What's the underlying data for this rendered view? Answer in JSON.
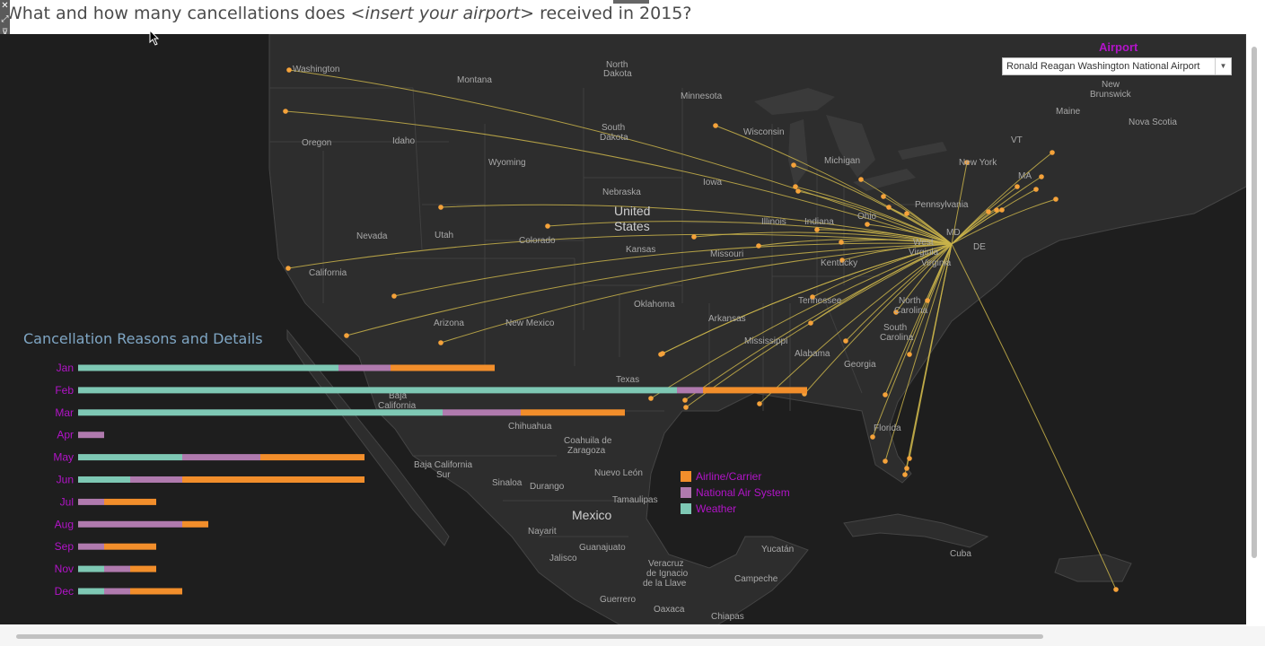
{
  "title": {
    "part1": "What and how many cancellations does ",
    "italic": "<insert your airport>",
    "part2": " received in 2015?"
  },
  "airport_filter": {
    "label": "Airport",
    "selected": "Ronald Reagan Washington National Airport"
  },
  "map_labels": {
    "states": [
      "Washington",
      "Montana",
      "North Dakota",
      "Minnesota",
      "Oregon",
      "Idaho",
      "South Dakota",
      "Wisconsin",
      "Michigan",
      "Wyoming",
      "Nebraska",
      "Iowa",
      "Illinois",
      "Indiana",
      "Ohio",
      "Pennsylvania",
      "New York",
      "Nevada",
      "Utah",
      "Colorado",
      "Kansas",
      "Missouri",
      "Kentucky",
      "West Virginia",
      "Virginia",
      "California",
      "Arizona",
      "New Mexico",
      "Oklahoma",
      "Arkansas",
      "Tennessee",
      "North Carolina",
      "South Carolina",
      "Mississippi",
      "Alabama",
      "Georgia",
      "Texas",
      "Florida",
      "Maine",
      "VT",
      "MA",
      "MD",
      "DE",
      "New Brunswick",
      "Nova Scotia",
      "Baja California",
      "Chihuahua",
      "Coahuila de Zaragoza",
      "Baja California Sur",
      "Sinaloa",
      "Durango",
      "Nuevo León",
      "Tamaulipas",
      "Nayarit",
      "Guanajuato",
      "Jalisco",
      "Veracruz de Ignacio de la Llave",
      "Yucatán",
      "Campeche",
      "Guerrero",
      "Oaxaca",
      "Chiapas"
    ],
    "countries": [
      "United States",
      "Mexico",
      "Cuba"
    ]
  },
  "chart_data": {
    "type": "bar",
    "stacked": true,
    "orientation": "horizontal",
    "title": "Cancellation Reasons and Details",
    "categories": [
      "Jan",
      "Feb",
      "Mar",
      "Apr",
      "May",
      "Jun",
      "Jul",
      "Aug",
      "Sep",
      "Nov",
      "Dec"
    ],
    "series": [
      {
        "name": "Weather",
        "color": "#7ec8b4",
        "values": [
          10,
          23,
          14,
          0,
          4,
          2,
          0,
          0,
          0,
          1,
          1
        ]
      },
      {
        "name": "National Air System",
        "color": "#b07aae",
        "values": [
          2,
          1,
          3,
          1,
          3,
          2,
          1,
          4,
          1,
          1,
          1
        ]
      },
      {
        "name": "Airline/Carrier",
        "color": "#f28e2b",
        "values": [
          4,
          4,
          4,
          0,
          4,
          7,
          2,
          1,
          2,
          1,
          2
        ]
      }
    ],
    "legend": {
      "placement": "bottom-right",
      "order": [
        "Airline/Carrier",
        "National Air System",
        "Weather"
      ]
    }
  },
  "colors": {
    "route_line": "#c9b34a",
    "airport_dot": "#f5a23a",
    "label_purple": "#b214c8",
    "map_background": "#1e1e1e"
  },
  "icons": [
    "close-icon",
    "expand-icon",
    "filter-icon",
    "dropdown-icon",
    "cursor-icon"
  ]
}
